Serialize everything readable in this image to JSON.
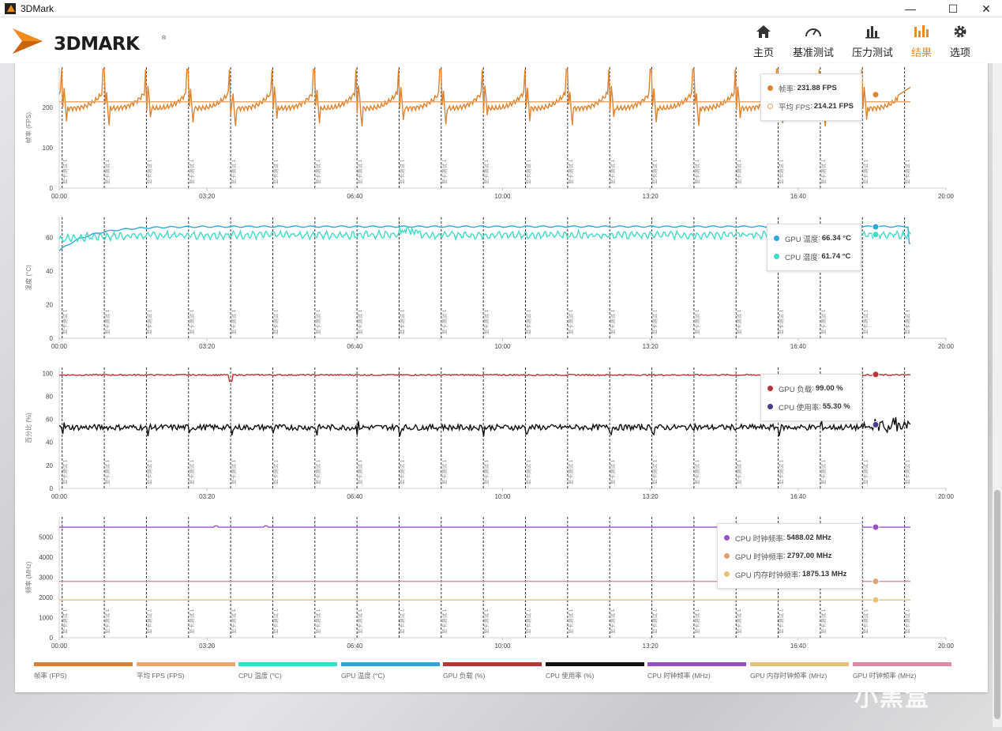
{
  "window": {
    "title": "3DMark",
    "minimize": "—",
    "maximize": "☐",
    "close": "✕"
  },
  "brand": {
    "logo_text": "3DMARK",
    "reg_mark": "®",
    "accent": "#f08a1c"
  },
  "nav": [
    {
      "label": "主页",
      "icon": "home-icon"
    },
    {
      "label": "基准测试",
      "icon": "gauge-icon"
    },
    {
      "label": "压力测试",
      "icon": "bar-chart-icon"
    },
    {
      "label": "结果",
      "icon": "results-icon",
      "active": true
    },
    {
      "label": "选项",
      "icon": "gear-icon"
    }
  ],
  "marker_label": "显卡测试 1",
  "chart_data": [
    {
      "type": "line",
      "ylabel": "帧率 (FPS)",
      "yticks": [
        0,
        100,
        200
      ],
      "ylim": [
        0,
        300
      ],
      "xlim": [
        "00:00",
        "20:00"
      ],
      "xticks": [
        "00:00",
        "03:20",
        "06:40",
        "10:00",
        "13:20",
        "16:40",
        "20:00"
      ],
      "marker_times": [
        "00:04",
        "01:01",
        "01:58",
        "02:55",
        "03:52",
        "04:49",
        "05:46",
        "06:43",
        "07:40",
        "08:37",
        "09:34",
        "10:31",
        "11:28",
        "12:25",
        "13:22",
        "14:19",
        "15:16",
        "16:13",
        "17:10",
        "18:07",
        "19:04"
      ],
      "series": [
        {
          "name": "帧率 (FPS)",
          "color": "#e0822c",
          "pattern": "fps_saw",
          "base": 190,
          "peak": 305,
          "end_value": 231.88
        },
        {
          "name": "平均 FPS (FPS)",
          "color": "#e8a060",
          "pattern": "flat",
          "base": 214.21
        }
      ],
      "tooltip": [
        {
          "label": "帧率",
          "value": "231.88 FPS",
          "color": "#e0822c",
          "hollow": false
        },
        {
          "label": "平均 FPS",
          "value": "214.21 FPS",
          "color": "#e8a060",
          "hollow": true
        }
      ]
    },
    {
      "type": "line",
      "ylabel": "温度 (°C)",
      "yticks": [
        0,
        20,
        40,
        60
      ],
      "ylim": [
        0,
        72
      ],
      "xlim": [
        "00:00",
        "20:00"
      ],
      "xticks": [
        "00:00",
        "03:20",
        "06:40",
        "10:00",
        "13:20",
        "16:40",
        "20:00"
      ],
      "series": [
        {
          "name": "GPU 温度 (°C)",
          "color": "#2ea7dd",
          "pattern": "warmup",
          "start": 52,
          "base": 66.5,
          "end_value": 66.34
        },
        {
          "name": "CPU 温度 (°C)",
          "color": "#3fdcc8",
          "pattern": "noisy",
          "start": 59,
          "base": 61.5,
          "end_value": 61.74
        }
      ],
      "tooltip": [
        {
          "label": "GPU 温度",
          "value": "66.34 °C",
          "color": "#2ea7dd",
          "hollow": false
        },
        {
          "label": "CPU 温度",
          "value": "61.74 °C",
          "color": "#3fdcc8",
          "hollow": false
        }
      ]
    },
    {
      "type": "line",
      "ylabel": "百分比 (%)",
      "yticks": [
        0,
        20,
        40,
        60,
        80,
        100
      ],
      "ylim": [
        0,
        105
      ],
      "xlim": [
        "00:00",
        "20:00"
      ],
      "xticks": [
        "00:00",
        "03:20",
        "06:40",
        "10:00",
        "13:20",
        "16:40",
        "20:00"
      ],
      "series": [
        {
          "name": "GPU 负载 (%)",
          "color": "#b83434",
          "pattern": "flat_dips",
          "base": 98.5,
          "end_value": 99.0
        },
        {
          "name": "CPU 使用率 (%)",
          "color": "#111111",
          "pattern": "spiky",
          "base": 53,
          "end_value": 55.3
        }
      ],
      "tooltip": [
        {
          "label": "GPU 负载",
          "value": "99.00 %",
          "color": "#b83434",
          "hollow": false
        },
        {
          "label": "CPU 使用率",
          "value": "55.30 %",
          "color": "#4b3b8c",
          "hollow": false
        }
      ]
    },
    {
      "type": "line",
      "ylabel": "频率 (MHz)",
      "yticks": [
        0,
        1000,
        2000,
        3000,
        4000,
        5000
      ],
      "ylim": [
        0,
        6000
      ],
      "xlim": [
        "00:00",
        "20:00"
      ],
      "xticks": [
        "00:00",
        "03:20",
        "06:40",
        "10:00",
        "13:20",
        "16:40",
        "20:00"
      ],
      "series": [
        {
          "name": "CPU 时钟频率 (MHz)",
          "color": "#9a4fc8",
          "pattern": "flat",
          "base": 5488.02
        },
        {
          "name": "GPU 时钟频率 (MHz)",
          "color": "#e08aa8",
          "pattern": "flat",
          "base": 2797.0
        },
        {
          "name": "GPU 内存时钟频率 (MHz)",
          "color": "#e8c072",
          "pattern": "flat",
          "base": 1875.13
        }
      ],
      "tooltip": [
        {
          "label": "CPU 时钟频率",
          "value": "5488.02 MHz",
          "color": "#9a4fc8",
          "hollow": false
        },
        {
          "label": "GPU 时钟频率",
          "value": "2797.00 MHz",
          "color": "#e0a070",
          "hollow": false
        },
        {
          "label": "GPU 内存时钟频率",
          "value": "1875.13 MHz",
          "color": "#e8c072",
          "hollow": false
        }
      ]
    }
  ],
  "legend": [
    {
      "label": "帧率 (FPS)",
      "color": "#dc7f2f"
    },
    {
      "label": "平均 FPS (FPS)",
      "color": "#eba66a"
    },
    {
      "label": "CPU 温度 (°C)",
      "color": "#36dcc6"
    },
    {
      "label": "GPU 温度 (°C)",
      "color": "#2ea3dc"
    },
    {
      "label": "GPU 负载 (%)",
      "color": "#b73535"
    },
    {
      "label": "CPU 使用率 (%)",
      "color": "#111111"
    },
    {
      "label": "CPU 时钟频率 (MHz)",
      "color": "#9550c8"
    },
    {
      "label": "GPU 内存时钟频率 (MHz)",
      "color": "#e3c27a"
    },
    {
      "label": "GPU 时钟频率 (MHz)",
      "color": "#df88a6"
    }
  ],
  "watermark": "小黑盒"
}
